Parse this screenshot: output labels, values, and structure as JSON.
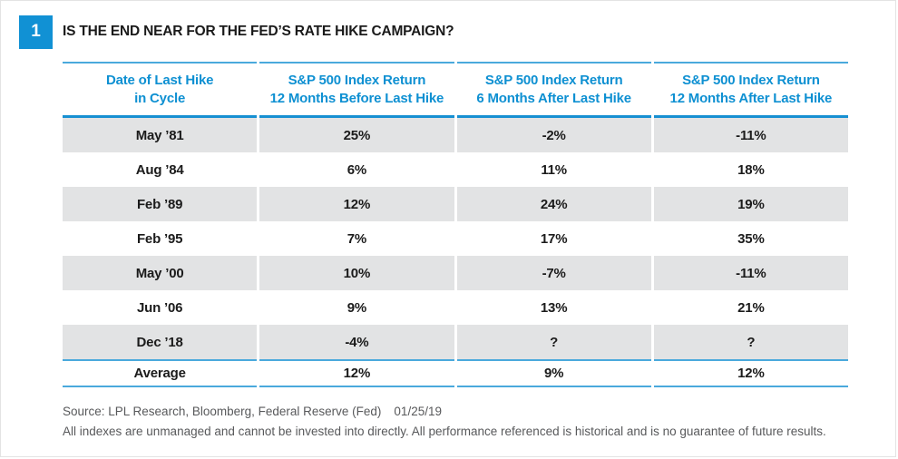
{
  "figure": {
    "badge": "1",
    "title": "IS THE END NEAR FOR THE FED’S RATE HIKE CAMPAIGN?"
  },
  "table": {
    "columns": [
      {
        "line1": "Date of Last Hike",
        "line2": "in Cycle"
      },
      {
        "line1": "S&P 500 Index Return",
        "line2": "12 Months Before Last Hike"
      },
      {
        "line1": "S&P 500 Index Return",
        "line2": "6 Months After Last Hike"
      },
      {
        "line1": "S&P 500 Index Return",
        "line2": "12 Months After Last Hike"
      }
    ],
    "rows": [
      [
        "May ’81",
        "25%",
        "-2%",
        "-11%"
      ],
      [
        "Aug ’84",
        "6%",
        "11%",
        "18%"
      ],
      [
        "Feb ’89",
        "12%",
        "24%",
        "19%"
      ],
      [
        "Feb ’95",
        "7%",
        "17%",
        "35%"
      ],
      [
        "May ’00",
        "10%",
        "-7%",
        "-11%"
      ],
      [
        "Jun ’06",
        "9%",
        "13%",
        "21%"
      ],
      [
        "Dec ’18",
        "-4%",
        "?",
        "?"
      ]
    ],
    "average": [
      "Average",
      "12%",
      "9%",
      "12%"
    ]
  },
  "footer": {
    "source": "Source: LPL Research, Bloomberg, Federal Reserve (Fed)",
    "date": "01/25/19",
    "disclaimer": "All indexes are unmanaged and cannot be invested into directly. All performance referenced is historical and is no guarantee of future results."
  },
  "colors": {
    "accent_blue": "#1191d4",
    "header_text_blue": "#0e90d2",
    "rule_blue_light": "#4aa9dc",
    "rule_blue_dark": "#1790d2",
    "row_gray": "#e2e3e4",
    "footer_gray": "#58595b"
  },
  "chart_data": {
    "type": "table",
    "title": "IS THE END NEAR FOR THE FED’S RATE HIKE CAMPAIGN?",
    "categories": [
      "May ’81",
      "Aug ’84",
      "Feb ’89",
      "Feb ’95",
      "May ’00",
      "Jun ’06",
      "Dec ’18",
      "Average"
    ],
    "series": [
      {
        "name": "S&P 500 Index Return 12 Months Before Last Hike",
        "values": [
          "25%",
          "6%",
          "12%",
          "7%",
          "10%",
          "9%",
          "-4%",
          "12%"
        ]
      },
      {
        "name": "S&P 500 Index Return 6 Months After Last Hike",
        "values": [
          "-2%",
          "11%",
          "24%",
          "17%",
          "-7%",
          "13%",
          "?",
          "9%"
        ]
      },
      {
        "name": "S&P 500 Index Return 12 Months After Last Hike",
        "values": [
          "-11%",
          "18%",
          "19%",
          "35%",
          "-11%",
          "21%",
          "?",
          "12%"
        ]
      }
    ],
    "source": "LPL Research, Bloomberg, Federal Reserve (Fed) 01/25/19"
  }
}
